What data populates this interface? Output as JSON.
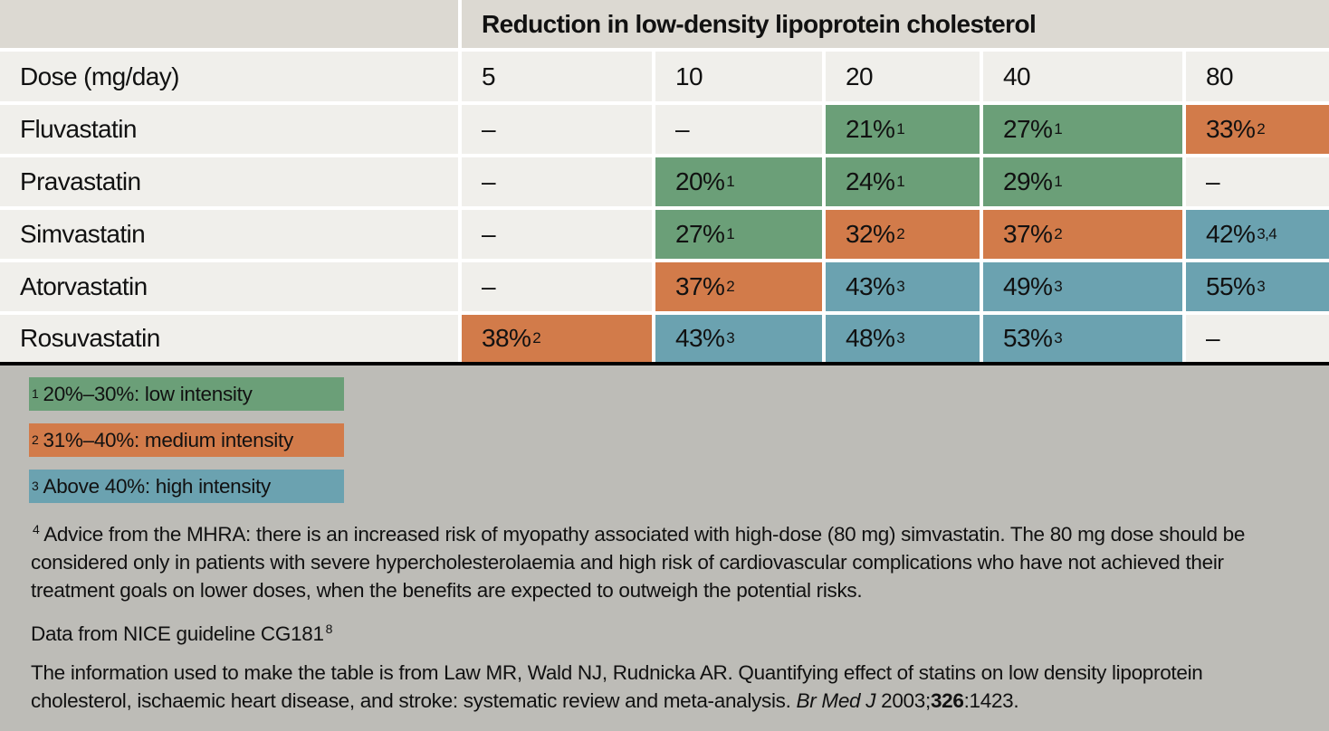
{
  "table": {
    "title": "Reduction in low-density lipoprotein cholesterol",
    "dose_label": "Dose (mg/day)",
    "doses": [
      "5",
      "10",
      "20",
      "40",
      "80"
    ],
    "rows": [
      {
        "drug": "Fluvastatin",
        "cells": [
          {
            "v": "–",
            "n": "",
            "c": ""
          },
          {
            "v": "–",
            "n": "",
            "c": ""
          },
          {
            "v": "21%",
            "n": "1",
            "c": "g"
          },
          {
            "v": "27%",
            "n": "1",
            "c": "g"
          },
          {
            "v": "33%",
            "n": "2",
            "c": "o"
          }
        ]
      },
      {
        "drug": "Pravastatin",
        "cells": [
          {
            "v": "–",
            "n": "",
            "c": ""
          },
          {
            "v": "20%",
            "n": "1",
            "c": "g"
          },
          {
            "v": "24%",
            "n": "1",
            "c": "g"
          },
          {
            "v": "29%",
            "n": "1",
            "c": "g"
          },
          {
            "v": "–",
            "n": "",
            "c": ""
          }
        ]
      },
      {
        "drug": "Simvastatin",
        "cells": [
          {
            "v": "–",
            "n": "",
            "c": ""
          },
          {
            "v": "27%",
            "n": "1",
            "c": "g"
          },
          {
            "v": "32%",
            "n": "2",
            "c": "o"
          },
          {
            "v": "37%",
            "n": "2",
            "c": "o"
          },
          {
            "v": "42%",
            "n": "3,4",
            "c": "b"
          }
        ]
      },
      {
        "drug": "Atorvastatin",
        "cells": [
          {
            "v": "–",
            "n": "",
            "c": ""
          },
          {
            "v": "37%",
            "n": "2",
            "c": "o"
          },
          {
            "v": "43%",
            "n": "3",
            "c": "b"
          },
          {
            "v": "49%",
            "n": "3",
            "c": "b"
          },
          {
            "v": "55%",
            "n": "3",
            "c": "b"
          }
        ]
      },
      {
        "drug": "Rosuvastatin",
        "cells": [
          {
            "v": "38%",
            "n": "2",
            "c": "o"
          },
          {
            "v": "43%",
            "n": "3",
            "c": "b"
          },
          {
            "v": "48%",
            "n": "3",
            "c": "b"
          },
          {
            "v": "53%",
            "n": "3",
            "c": "b"
          },
          {
            "v": "–",
            "n": "",
            "c": ""
          }
        ]
      }
    ]
  },
  "colors": {
    "low": "#6b9f78",
    "medium": "#d27b4a",
    "high": "#6ba2b0",
    "header": "#dcd9d2",
    "cell": "#f0efeb",
    "footer": "#bdbcb7"
  },
  "legend": [
    {
      "n": "1",
      "text": "20%–30%: low intensity",
      "c": "g"
    },
    {
      "n": "2",
      "text": "31%–40%: medium intensity",
      "c": "o"
    },
    {
      "n": "3",
      "text": "Above 40%: high intensity",
      "c": "b"
    }
  ],
  "notes": {
    "mhra_n": "4",
    "mhra": "Advice from the MHRA: there is an increased risk of myopathy associated with high-dose (80 mg) simvastatin. The 80 mg dose should be considered only in patients with severe hypercholesterolaemia and high risk of cardiovascular complications who have not achieved their treatment goals on lower doses, when the benefits are expected to outweigh the potential risks.",
    "source": "Data from NICE guideline CG181",
    "source_ref": "8",
    "ref_pre": "The information used to make the table is from Law MR, Wald NJ, Rudnicka AR. Quantifying effect of statins on low density lipoprotein cholesterol, ischaemic heart disease, and stroke: systematic review and meta-analysis. ",
    "ref_journal": "Br Med J",
    "ref_year": " 2003;",
    "ref_vol": "326",
    "ref_pages": ":1423."
  }
}
